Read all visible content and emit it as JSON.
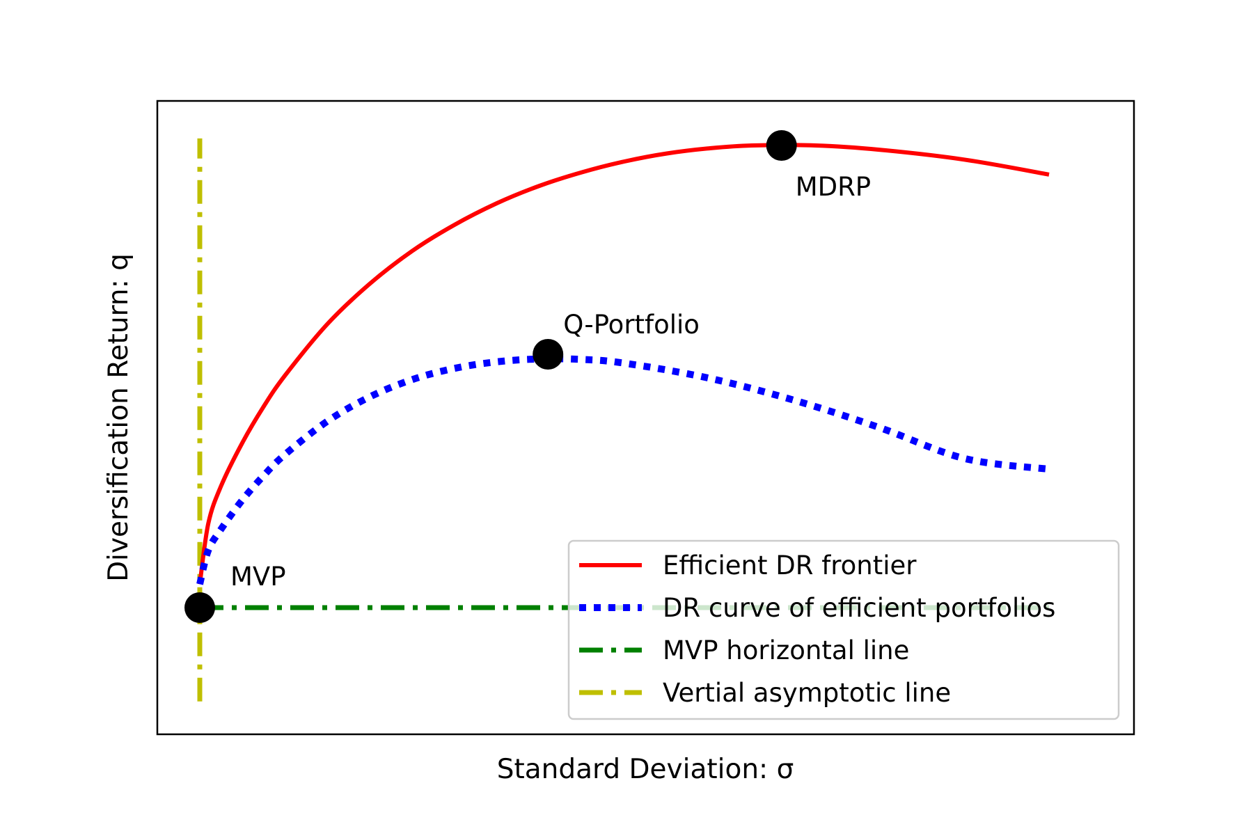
{
  "chart_data": {
    "type": "line",
    "title": "",
    "xlabel": "Standard Deviation: σ",
    "ylabel": "Diversification Return: q",
    "xticks": [],
    "yticks": [],
    "xlim": [
      -0.1,
      2.2
    ],
    "ylim": [
      -0.27,
      1.08
    ],
    "grid": false,
    "legend_position": "lower right",
    "series": [
      {
        "name": "Efficient DR frontier",
        "color": "#ff0000",
        "style": "solid",
        "x": [
          0.0,
          0.02,
          0.05,
          0.1,
          0.15,
          0.2,
          0.3,
          0.4,
          0.5,
          0.6,
          0.7,
          0.8,
          0.9,
          1.0,
          1.1,
          1.2,
          1.3,
          1.45,
          1.6,
          1.8,
          2.0
        ],
        "y": [
          0.05,
          0.179,
          0.259,
          0.351,
          0.428,
          0.494,
          0.604,
          0.69,
          0.76,
          0.816,
          0.862,
          0.899,
          0.928,
          0.951,
          0.968,
          0.979,
          0.985,
          0.985,
          0.976,
          0.955,
          0.923
        ]
      },
      {
        "name": "DR curve of efficient portfolios",
        "color": "#0000ff",
        "style": "dotted",
        "x": [
          0.0,
          0.02,
          0.05,
          0.1,
          0.15,
          0.2,
          0.3,
          0.4,
          0.5,
          0.6,
          0.7,
          0.8,
          0.9,
          1.0,
          1.2,
          1.4,
          1.6,
          1.8,
          2.0
        ],
        "y": [
          0.05,
          0.122,
          0.167,
          0.229,
          0.281,
          0.326,
          0.397,
          0.449,
          0.486,
          0.51,
          0.524,
          0.53,
          0.529,
          0.521,
          0.489,
          0.442,
          0.384,
          0.318,
          0.295
        ]
      },
      {
        "name": "MVP horizontal line",
        "color": "#008000",
        "style": "dashdot",
        "x": [
          0.0,
          2.0
        ],
        "y": [
          0.0,
          0.0
        ]
      },
      {
        "name": "Vertial asymptotic line",
        "color": "#bfbf00",
        "style": "dashdot",
        "x": [
          0.0,
          0.0
        ],
        "y": [
          -0.2,
          1.0
        ]
      }
    ],
    "points": [
      {
        "label": "MVP",
        "x": 0.0,
        "y": 0.0
      },
      {
        "label": "Q-Portfolio",
        "x": 0.82,
        "y": 0.54
      },
      {
        "label": "MDRP",
        "x": 1.37,
        "y": 0.985
      }
    ]
  }
}
